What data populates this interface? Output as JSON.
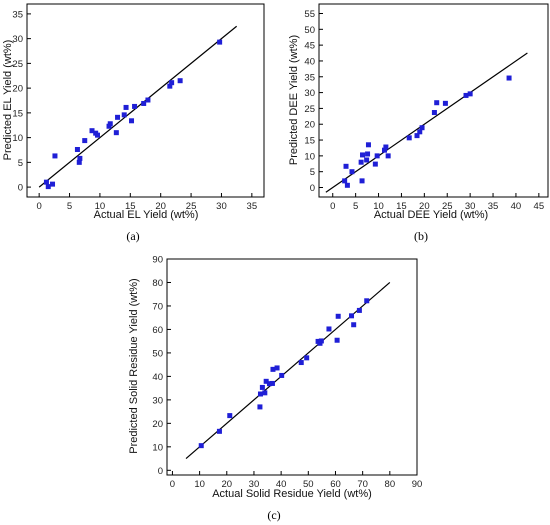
{
  "chart_data": [
    {
      "type": "scatter",
      "panel_label": "(a)",
      "xlabel": "Actual EL Yield (wt%)",
      "ylabel": "Predicted EL Yield (wt%)",
      "xlim": [
        -2,
        37
      ],
      "ylim": [
        -2,
        37
      ],
      "xticks": [
        0,
        5,
        10,
        15,
        20,
        25,
        30,
        35
      ],
      "yticks": [
        0,
        5,
        10,
        15,
        20,
        25,
        30,
        35
      ],
      "fit_line": [
        [
          0,
          0
        ],
        [
          32.5,
          32.5
        ]
      ],
      "points": [
        [
          1.2,
          1.0
        ],
        [
          1.5,
          0.1
        ],
        [
          2.2,
          0.6
        ],
        [
          2.6,
          6.3
        ],
        [
          6.3,
          7.6
        ],
        [
          6.6,
          5.0
        ],
        [
          6.7,
          5.8
        ],
        [
          7.5,
          9.4
        ],
        [
          8.7,
          11.4
        ],
        [
          9.3,
          10.9
        ],
        [
          9.6,
          10.5
        ],
        [
          11.5,
          12.3
        ],
        [
          11.7,
          12.8
        ],
        [
          12.7,
          11.0
        ],
        [
          12.9,
          14.1
        ],
        [
          14.0,
          14.6
        ],
        [
          14.3,
          16.1
        ],
        [
          15.2,
          13.4
        ],
        [
          15.7,
          16.3
        ],
        [
          17.2,
          16.9
        ],
        [
          17.9,
          17.6
        ],
        [
          21.5,
          20.4
        ],
        [
          21.8,
          21.1
        ],
        [
          23.2,
          21.5
        ],
        [
          29.7,
          29.3
        ]
      ],
      "grid": false
    },
    {
      "type": "scatter",
      "panel_label": "(b)",
      "xlabel": "Actual DEE Yield (wt%)",
      "ylabel": "Predicted  DEE Yield (wt%)",
      "xlim": [
        -3,
        47
      ],
      "ylim": [
        -3,
        58
      ],
      "xticks": [
        0,
        5,
        10,
        15,
        20,
        25,
        30,
        35,
        40,
        45
      ],
      "yticks": [
        0,
        5,
        10,
        15,
        20,
        25,
        30,
        35,
        40,
        45,
        50,
        55
      ],
      "fit_line": [
        [
          -1.5,
          -1.5
        ],
        [
          42.5,
          42.5
        ]
      ],
      "points": [
        [
          2.6,
          2.1
        ],
        [
          2.9,
          6.7
        ],
        [
          3.2,
          0.7
        ],
        [
          4.2,
          5.0
        ],
        [
          6.2,
          8.0
        ],
        [
          6.4,
          2.1
        ],
        [
          6.5,
          10.3
        ],
        [
          7.4,
          8.7
        ],
        [
          7.6,
          10.6
        ],
        [
          7.8,
          13.5
        ],
        [
          9.3,
          7.4
        ],
        [
          9.7,
          10.0
        ],
        [
          11.3,
          11.8
        ],
        [
          11.6,
          12.8
        ],
        [
          12.1,
          10.0
        ],
        [
          16.7,
          15.7
        ],
        [
          18.4,
          16.4
        ],
        [
          19.0,
          17.6
        ],
        [
          19.5,
          18.9
        ],
        [
          22.2,
          23.7
        ],
        [
          22.7,
          26.8
        ],
        [
          24.6,
          26.6
        ],
        [
          29.1,
          29.1
        ],
        [
          30.0,
          29.6
        ],
        [
          38.5,
          34.6
        ]
      ],
      "grid": false
    },
    {
      "type": "scatter",
      "panel_label": "(c)",
      "xlabel": "Actual Solid Residue Yield (wt%)",
      "ylabel": "Predicted Solid Residue Yield (wt%)",
      "xlim": [
        -2,
        90
      ],
      "ylim": [
        -2,
        90
      ],
      "xticks": [
        0,
        10,
        20,
        30,
        40,
        50,
        60,
        70,
        80,
        90
      ],
      "yticks": [
        0,
        10,
        20,
        30,
        40,
        50,
        60,
        70,
        80,
        90
      ],
      "fit_line": [
        [
          5,
          5
        ],
        [
          80,
          80
        ]
      ],
      "points": [
        [
          10.6,
          10.5
        ],
        [
          17.3,
          16.6
        ],
        [
          21.1,
          23.3
        ],
        [
          32.2,
          27.0
        ],
        [
          32.4,
          32.5
        ],
        [
          33.1,
          35.3
        ],
        [
          34.0,
          33.0
        ],
        [
          34.5,
          37.9
        ],
        [
          35.7,
          36.9
        ],
        [
          36.8,
          37.0
        ],
        [
          37.0,
          43.0
        ],
        [
          38.5,
          43.6
        ],
        [
          40.2,
          40.4
        ],
        [
          47.4,
          45.9
        ],
        [
          49.4,
          47.9
        ],
        [
          53.6,
          54.9
        ],
        [
          54.3,
          54.1
        ],
        [
          54.8,
          55.1
        ],
        [
          57.6,
          60.2
        ],
        [
          60.6,
          55.4
        ],
        [
          61.0,
          65.6
        ],
        [
          65.9,
          65.8
        ],
        [
          66.7,
          62.0
        ],
        [
          68.8,
          68.1
        ],
        [
          71.5,
          72.2
        ]
      ],
      "grid": false
    }
  ],
  "colors": {
    "marker": "#1f1fd6",
    "line": "#000000",
    "axis": "#000000"
  }
}
